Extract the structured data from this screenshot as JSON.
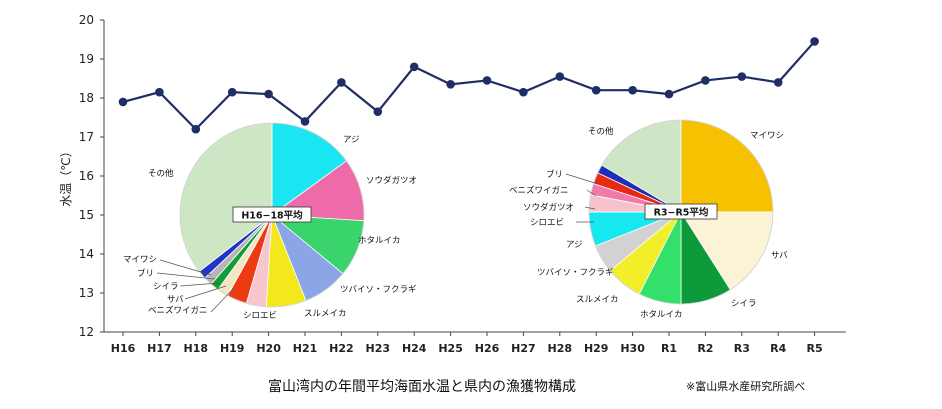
{
  "caption": "富山湾内の年間平均海面水温と県内の漁獲物構成",
  "source": "※富山県水産研究所調べ",
  "chart_data": [
    {
      "type": "line",
      "ylabel": "水温（℃）",
      "ylim": [
        12,
        20
      ],
      "yticks": [
        12,
        13,
        14,
        15,
        16,
        17,
        18,
        19,
        20
      ],
      "categories": [
        "H16",
        "H17",
        "H18",
        "H19",
        "H20",
        "H21",
        "H22",
        "H23",
        "H24",
        "H25",
        "H26",
        "H27",
        "H28",
        "H29",
        "H30",
        "R1",
        "R2",
        "R3",
        "R4",
        "R5"
      ],
      "values": [
        17.9,
        18.15,
        17.2,
        18.15,
        18.1,
        17.4,
        18.4,
        17.65,
        18.8,
        18.35,
        18.45,
        18.15,
        18.55,
        18.2,
        18.2,
        18.1,
        18.45,
        18.55,
        18.4,
        19.45
      ],
      "color": "#1f2f66",
      "grid": false
    },
    {
      "type": "pie",
      "title": "H16−18平均",
      "slices": [
        {
          "label": "アジ",
          "value": 15,
          "color": "#19e6f0"
        },
        {
          "label": "ソウダガツオ",
          "value": 11,
          "color": "#ef6aa8"
        },
        {
          "label": "ホタルイカ",
          "value": 10,
          "color": "#39d46b"
        },
        {
          "label": "ツバイソ・フクラギ",
          "value": 8,
          "color": "#8aa6e6"
        },
        {
          "label": "スルメイカ",
          "value": 7,
          "color": "#f2e81c"
        },
        {
          "label": "シロエビ",
          "value": 3.5,
          "color": "#f7c6cf"
        },
        {
          "label": "ベニズワイガニ",
          "value": 3.5,
          "color": "#ec3a13"
        },
        {
          "label": "サバ",
          "value": 2,
          "color": "#f1e6c6"
        },
        {
          "label": "シイラ",
          "value": 1.5,
          "color": "#149c36"
        },
        {
          "label": "ブリ",
          "value": 1.5,
          "color": "#b6b6b6"
        },
        {
          "label": "マイワシ",
          "value": 1.5,
          "color": "#2233c8"
        },
        {
          "label": "その他",
          "value": 35.5,
          "color": "#cde6c4"
        }
      ]
    },
    {
      "type": "pie",
      "title": "R3−R5平均",
      "slices": [
        {
          "label": "マイワシ",
          "value": 25,
          "color": "#f5c100"
        },
        {
          "label": "サバ",
          "value": 16,
          "color": "#fbf3d6"
        },
        {
          "label": "シイラ",
          "value": 9,
          "color": "#0d9a3a"
        },
        {
          "label": "ホタルイカ",
          "value": 7.5,
          "color": "#33e06a"
        },
        {
          "label": "スルメイカ",
          "value": 6.5,
          "color": "#f2ef2a"
        },
        {
          "label": "ツバイソ・フクラギ",
          "value": 5,
          "color": "#d2d2d2"
        },
        {
          "label": "アジ",
          "value": 6,
          "color": "#15e8ef"
        },
        {
          "label": "シロエビ",
          "value": 3,
          "color": "#f6c3cd"
        },
        {
          "label": "ソウダガツオ",
          "value": 2,
          "color": "#f07aa9"
        },
        {
          "label": "ベニズワイガニ",
          "value": 2,
          "color": "#e92a12"
        },
        {
          "label": "ブリ",
          "value": 1.5,
          "color": "#1d2fb8"
        },
        {
          "label": "その他",
          "value": 16.5,
          "color": "#cfe6c6"
        }
      ]
    }
  ]
}
